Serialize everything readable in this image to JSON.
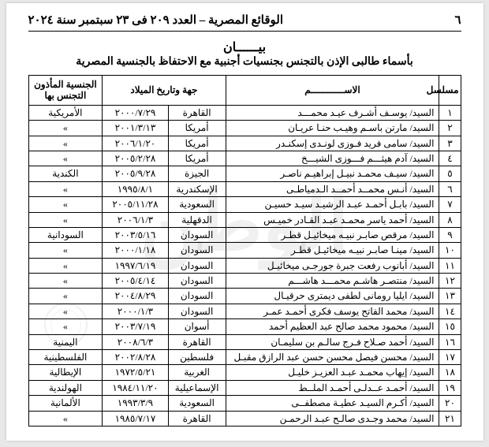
{
  "header": {
    "page_number": "٦",
    "gazette": "الوقائع المصرية – العدد ٢٠٩ فى ٢٣ سبتمبر سنة ٢٠٢٤"
  },
  "title": {
    "main": "بيــــــان",
    "sub": "بأسماء طالبى الإذن بالتجنس بجنسيات أجنبية مع الاحتفاظ بالجنسية المصرية"
  },
  "columns": {
    "serial": "مسلسل",
    "name": "الاســــــــــــم",
    "place_date": "جهة وتاريخ الميلاد",
    "nationality": "الجنسية المأذون التجنس بها"
  },
  "rows": [
    {
      "n": "١",
      "name": "السيد/ يوسـف أشـرف عيـد محمـــد",
      "place": "القاهرة",
      "date": "٢٠٠٠/٧/٢٩",
      "nat": "الأمريكية"
    },
    {
      "n": "٢",
      "name": "السيد/ مارتن باسـم وهيـب حنـا عريـان",
      "place": "أمريكا",
      "date": "٢٠٠١/٣/١٣",
      "nat": "»"
    },
    {
      "n": "٣",
      "name": "السيد/ سامى فريد فـوزى لونـدى إسكنـدر",
      "place": "أمريكا",
      "date": "٢٠٠٦/١/٢٠",
      "nat": "»"
    },
    {
      "n": "٤",
      "name": "السيد/ آدم هيثـــم فـــوزى الشيـــخ",
      "place": "أمريكا",
      "date": "٢٠٠٥/٢/٢٨",
      "nat": "»"
    },
    {
      "n": "٥",
      "name": "السيد/ سيـف محمـد نبيـل إبراهيـم ناصـر",
      "place": "الجيزة",
      "date": "٢٠٠٥/٩/٢٨",
      "nat": "الكندية"
    },
    {
      "n": "٦",
      "name": "السيد/ أنـس محمــد أحمــد الـدمياطـى",
      "place": "الإسكندرية",
      "date": "١٩٩٥/٨/١",
      "nat": "»"
    },
    {
      "n": "٧",
      "name": "السيد/ بابـل أحمـد عبـد الرشيـد سيـد حسيـن",
      "place": "السعودية",
      "date": "٢٠٠٥/١١/٢٨",
      "nat": "»"
    },
    {
      "n": "٨",
      "name": "السيد/ أحمد ياسر محمـد عبـد القـادر خميـس",
      "place": "الدقهلية",
      "date": "٢٠٠٦/١/٣",
      "nat": "»"
    },
    {
      "n": "٩",
      "name": "السيد/ مرقص صابـر نبيـه ميخائيـل قطـر",
      "place": "السودان",
      "date": "٢٠٠٣/٥/١٦",
      "nat": "السودانية"
    },
    {
      "n": "١٠",
      "name": "السيد/ مينـا صابـر نبيـه ميخائيـل قطـر",
      "place": "السودان",
      "date": "٢٠٠٠/١/١٨",
      "nat": "»"
    },
    {
      "n": "١١",
      "name": "السيد/ أبانوب رفعت جبرة جورجـى ميخائيـل",
      "place": "السودان",
      "date": "١٩٩٧/٦/١٩",
      "nat": "»"
    },
    {
      "n": "١٢",
      "name": "السيد/ منتصـر هاشـم محمـــد هاشـــم",
      "place": "السودان",
      "date": "٢٠٠٥/٤/١٤",
      "nat": "»"
    },
    {
      "n": "١٣",
      "name": "السيد/ ايليا رومانى لطفى ديمترى حرقيـال",
      "place": "السودان",
      "date": "٢٠٠٤/٨/٢٩",
      "nat": "»"
    },
    {
      "n": "١٤",
      "name": "السيد/ محمد الفاتح يوسف فكرى أحمـد عمـر",
      "place": "السودان",
      "date": "٢٠٠٠/١/٣",
      "nat": "»"
    },
    {
      "n": "١٥",
      "name": "السيد/ محمود محمد صالح عبد العظيم أحمد",
      "place": "أسوان",
      "date": "٢٠٠٣/٧/١٩",
      "nat": "»"
    },
    {
      "n": "١٦",
      "name": "السيد/ أحمد صـلاح فـرج سالـم بن سليمـان",
      "place": "القاهرة",
      "date": "٢٠٠٨/٦/٣",
      "nat": "اليمنية"
    },
    {
      "n": "١٧",
      "name": "السيد/ محسن فيصل محسن حسن عبد الرازق مقبـل",
      "place": "فلسطين",
      "date": "٢٠٠٢/٨/٢٨",
      "nat": "الفلسطينية"
    },
    {
      "n": "١٨",
      "name": "السيد/ إيهاب محمـد عبـد العزيـز خليـل",
      "place": "الغربية",
      "date": "١٩٧٢/٥/٢١",
      "nat": "الإيطالية"
    },
    {
      "n": "١٩",
      "name": "السيد/ أحمـد عــدلـى أحمـد الملــط",
      "place": "الإسماعيلية",
      "date": "١٩٨٤/١١/٢٠",
      "nat": "الهولندية"
    },
    {
      "n": "٢٠",
      "name": "السيد/ أكـرم السيـد عطيـة مصطفــى",
      "place": "السعودية",
      "date": "١٩٩٣/٣/٩",
      "nat": "الألمانية"
    },
    {
      "n": "٢١",
      "name": "السيد/ محمد وجـدى صالـح عبـد الرحمـن",
      "place": "القاهرة",
      "date": "١٩٨٥/٧/١٧",
      "nat": "»"
    }
  ]
}
